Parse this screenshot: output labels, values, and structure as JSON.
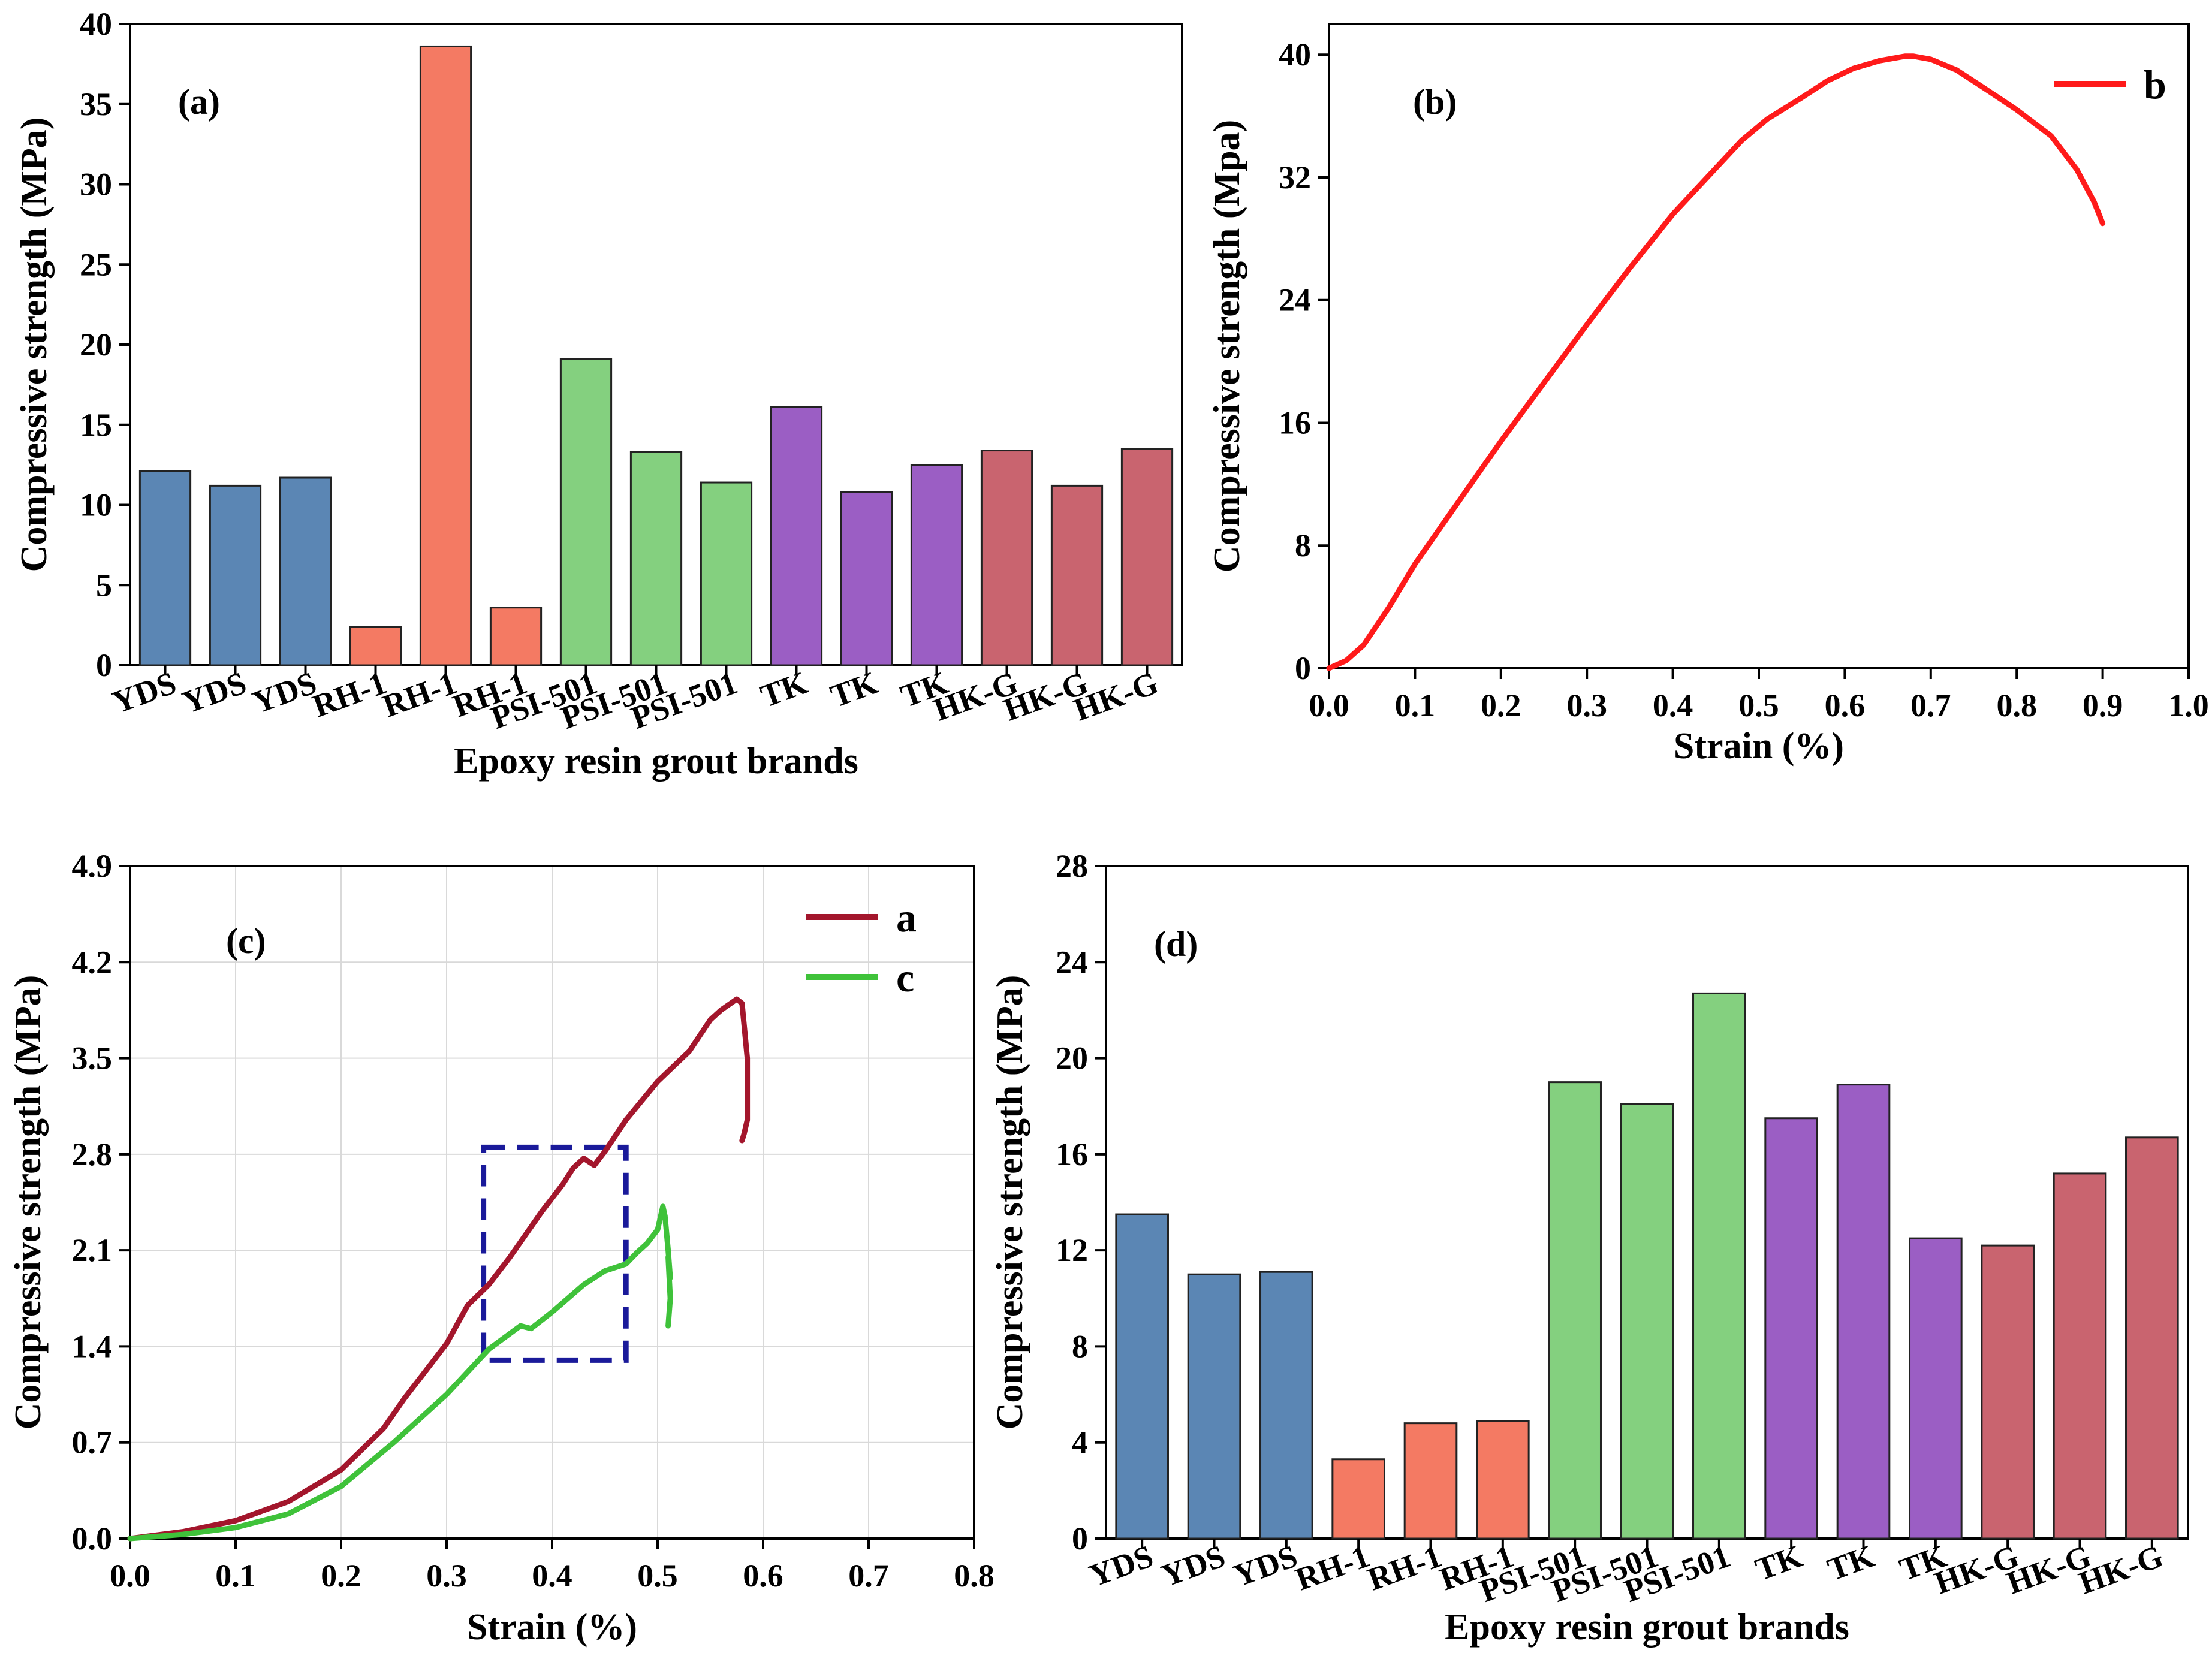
{
  "colors": {
    "yds": "#5b86b4",
    "rh": "#f47a63",
    "psi": "#84d07f",
    "tk": "#9b5ec4",
    "hkg": "#c9646f",
    "curve_b": "#ff1a1a",
    "curve_a": "#a3162c",
    "curve_c": "#3fc23a",
    "box": "#1a1a9a"
  },
  "chart_data": [
    {
      "id": "a",
      "type": "bar",
      "panel_label": "(a)",
      "xlabel": "Epoxy resin grout brands",
      "ylabel": "Compressive strength (MPa)",
      "ylim": [
        0,
        40
      ],
      "yticks": [
        0,
        5,
        10,
        15,
        20,
        25,
        30,
        35,
        40
      ],
      "categories": [
        "YDS",
        "YDS",
        "YDS",
        "RH-1",
        "RH-1",
        "RH-1",
        "PSI-501",
        "PSI-501",
        "PSI-501",
        "TK",
        "TK",
        "TK",
        "HK-G",
        "HK-G",
        "HK-G"
      ],
      "values": [
        12.1,
        11.2,
        11.7,
        2.4,
        38.6,
        3.6,
        19.1,
        13.3,
        11.4,
        16.1,
        10.8,
        12.5,
        13.4,
        11.2,
        13.5
      ],
      "groups": [
        "yds",
        "yds",
        "yds",
        "rh",
        "rh",
        "rh",
        "psi",
        "psi",
        "psi",
        "tk",
        "tk",
        "tk",
        "hkg",
        "hkg",
        "hkg"
      ]
    },
    {
      "id": "b",
      "type": "line",
      "panel_label": "(b)",
      "xlabel": "Strain (%)",
      "ylabel": "Compressive strength (Mpa)",
      "xlim": [
        0,
        1.0
      ],
      "ylim": [
        0,
        42
      ],
      "xticks": [
        "0.0",
        "0.1",
        "0.2",
        "0.3",
        "0.4",
        "0.5",
        "0.6",
        "0.7",
        "0.8",
        "0.9",
        "1.0"
      ],
      "yticks": [
        0,
        8,
        16,
        24,
        32,
        40
      ],
      "legend": [
        {
          "name": "b",
          "color_key": "curve_b"
        }
      ],
      "series": [
        {
          "name": "b",
          "color_key": "curve_b",
          "x": [
            0.0,
            0.02,
            0.04,
            0.07,
            0.1,
            0.15,
            0.2,
            0.25,
            0.3,
            0.35,
            0.4,
            0.45,
            0.48,
            0.51,
            0.55,
            0.58,
            0.61,
            0.64,
            0.67,
            0.68,
            0.7,
            0.73,
            0.76,
            0.8,
            0.84,
            0.87,
            0.89,
            0.9
          ],
          "y": [
            0.0,
            0.5,
            1.5,
            4.0,
            6.8,
            10.8,
            14.8,
            18.6,
            22.4,
            26.1,
            29.6,
            32.6,
            34.4,
            35.8,
            37.2,
            38.3,
            39.1,
            39.6,
            39.9,
            39.9,
            39.7,
            39.0,
            37.9,
            36.4,
            34.7,
            32.5,
            30.4,
            29.0
          ]
        }
      ]
    },
    {
      "id": "c",
      "type": "line",
      "panel_label": "(c)",
      "xlabel": "Strain (%)",
      "ylabel": "Compressive strength (MPa)",
      "xlim": [
        0,
        0.8
      ],
      "ylim": [
        0,
        4.9
      ],
      "xticks": [
        "0.0",
        "0.1",
        "0.2",
        "0.3",
        "0.4",
        "0.5",
        "0.6",
        "0.7",
        "0.8"
      ],
      "yticks": [
        "0.0",
        "0.7",
        "1.4",
        "2.1",
        "2.8",
        "3.5",
        "4.2",
        "4.9"
      ],
      "legend": [
        {
          "name": "a",
          "color_key": "curve_a"
        },
        {
          "name": "c",
          "color_key": "curve_c"
        }
      ],
      "highlight_box": {
        "x": [
          0.335,
          0.47
        ],
        "y": [
          1.3,
          2.85
        ]
      },
      "series": [
        {
          "name": "a",
          "color_key": "curve_a",
          "x": [
            0.0,
            0.05,
            0.1,
            0.15,
            0.2,
            0.24,
            0.26,
            0.3,
            0.32,
            0.34,
            0.36,
            0.39,
            0.41,
            0.42,
            0.43,
            0.44,
            0.45,
            0.47,
            0.5,
            0.53,
            0.55,
            0.56,
            0.575,
            0.58,
            0.585,
            0.585,
            0.582,
            0.58
          ],
          "y": [
            0.0,
            0.05,
            0.13,
            0.27,
            0.5,
            0.8,
            1.02,
            1.42,
            1.7,
            1.85,
            2.05,
            2.38,
            2.58,
            2.7,
            2.77,
            2.72,
            2.82,
            3.05,
            3.33,
            3.55,
            3.78,
            3.85,
            3.93,
            3.9,
            3.5,
            3.05,
            2.95,
            2.9
          ]
        },
        {
          "name": "c",
          "color_key": "curve_c",
          "x": [
            0.0,
            0.05,
            0.1,
            0.15,
            0.2,
            0.25,
            0.3,
            0.34,
            0.37,
            0.38,
            0.4,
            0.43,
            0.45,
            0.47,
            0.48,
            0.49,
            0.5,
            0.505,
            0.507,
            0.51,
            0.512,
            0.51,
            0.512,
            0.51
          ],
          "y": [
            0.0,
            0.03,
            0.08,
            0.18,
            0.38,
            0.7,
            1.05,
            1.38,
            1.55,
            1.53,
            1.65,
            1.85,
            1.95,
            2.0,
            2.08,
            2.15,
            2.25,
            2.42,
            2.35,
            2.1,
            1.9,
            2.05,
            1.75,
            1.55
          ]
        }
      ]
    },
    {
      "id": "d",
      "type": "bar",
      "panel_label": "(d)",
      "xlabel": "Epoxy resin grout brands",
      "ylabel": "Compressive strength (MPa)",
      "ylim": [
        0,
        28
      ],
      "yticks": [
        0,
        4,
        8,
        12,
        16,
        20,
        24,
        28
      ],
      "categories": [
        "YDS",
        "YDS",
        "YDS",
        "RH-1",
        "RH-1",
        "RH-1",
        "PSI-501",
        "PSI-501",
        "PSI-501",
        "TK",
        "TK",
        "TK",
        "HK-G",
        "HK-G",
        "HK-G"
      ],
      "values": [
        13.5,
        11.0,
        11.1,
        3.3,
        4.8,
        4.9,
        19.0,
        18.1,
        22.7,
        17.5,
        18.9,
        12.5,
        12.2,
        15.2,
        16.7
      ],
      "groups": [
        "yds",
        "yds",
        "yds",
        "rh",
        "rh",
        "rh",
        "psi",
        "psi",
        "psi",
        "tk",
        "tk",
        "tk",
        "hkg",
        "hkg",
        "hkg"
      ]
    }
  ]
}
